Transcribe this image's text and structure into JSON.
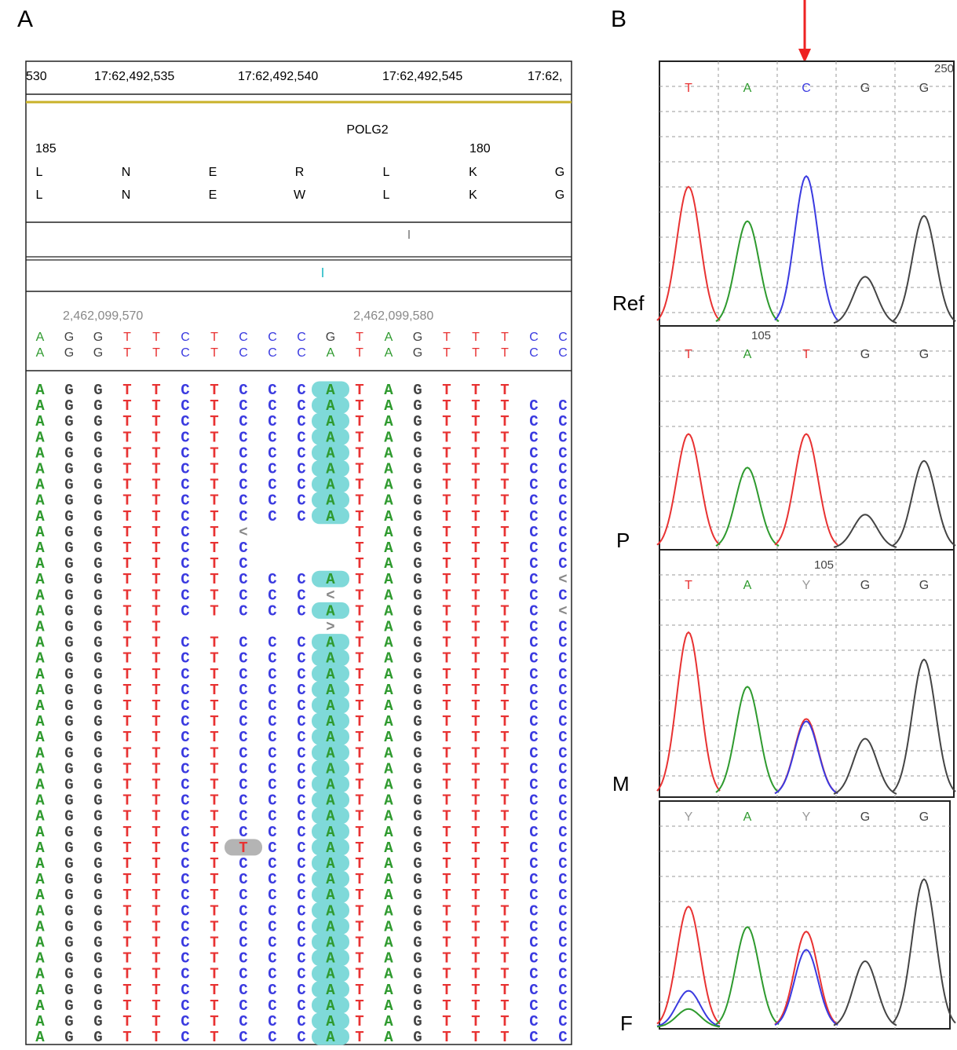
{
  "base_colors": {
    "A": "#2e9a2e",
    "G": "#444444",
    "T": "#e83232",
    "C": "#3a3ae0",
    "Y": "#9a9a9a",
    "<": "#888888",
    ">": "#888888"
  },
  "mismatch_fill": {
    "A": "#7fd9d9",
    "T": "#b4b4b4"
  },
  "panel_a": {
    "label": "A",
    "ruler": [
      "530",
      "17:62,492,535",
      "17:62,492,540",
      "17:62,492,545",
      "17:62,"
    ],
    "gene": "POLG2",
    "aa_numbers": [
      "185",
      "180"
    ],
    "aa_ref": [
      "L",
      "N",
      "E",
      "R",
      "L",
      "K",
      "G"
    ],
    "aa_alt": [
      "L",
      "N",
      "E",
      "W",
      "L",
      "K",
      "G"
    ],
    "coordinates": [
      "2,462,099,570",
      "2,462,099,580"
    ],
    "reference": [
      "A",
      "G",
      "G",
      "T",
      "T",
      "C",
      "T",
      "C",
      "C",
      "C",
      "G",
      "T",
      "A",
      "G",
      "T",
      "T",
      "T",
      "C",
      "C"
    ],
    "consensus": [
      "A",
      "G",
      "G",
      "T",
      "T",
      "C",
      "T",
      "C",
      "C",
      "C",
      "A",
      "T",
      "A",
      "G",
      "T",
      "T",
      "T",
      "C",
      "C"
    ],
    "reads": [
      [
        "A",
        "G",
        "G",
        "T",
        "T",
        "C",
        "T",
        "C",
        "C",
        "C",
        "A",
        "T",
        "A",
        "G",
        "T",
        "T",
        "T",
        null,
        null
      ],
      [
        "A",
        "G",
        "G",
        "T",
        "T",
        "C",
        "T",
        "C",
        "C",
        "C",
        "A",
        "T",
        "A",
        "G",
        "T",
        "T",
        "T",
        "C",
        "C"
      ],
      [
        "A",
        "G",
        "G",
        "T",
        "T",
        "C",
        "T",
        "C",
        "C",
        "C",
        "A",
        "T",
        "A",
        "G",
        "T",
        "T",
        "T",
        "C",
        "C"
      ],
      [
        "A",
        "G",
        "G",
        "T",
        "T",
        "C",
        "T",
        "C",
        "C",
        "C",
        "A",
        "T",
        "A",
        "G",
        "T",
        "T",
        "T",
        "C",
        "C"
      ],
      [
        "A",
        "G",
        "G",
        "T",
        "T",
        "C",
        "T",
        "C",
        "C",
        "C",
        "A",
        "T",
        "A",
        "G",
        "T",
        "T",
        "T",
        "C",
        "C"
      ],
      [
        "A",
        "G",
        "G",
        "T",
        "T",
        "C",
        "T",
        "C",
        "C",
        "C",
        "A",
        "T",
        "A",
        "G",
        "T",
        "T",
        "T",
        "C",
        "C"
      ],
      [
        "A",
        "G",
        "G",
        "T",
        "T",
        "C",
        "T",
        "C",
        "C",
        "C",
        "A",
        "T",
        "A",
        "G",
        "T",
        "T",
        "T",
        "C",
        "C"
      ],
      [
        "A",
        "G",
        "G",
        "T",
        "T",
        "C",
        "T",
        "C",
        "C",
        "C",
        "A",
        "T",
        "A",
        "G",
        "T",
        "T",
        "T",
        "C",
        "C"
      ],
      [
        "A",
        "G",
        "G",
        "T",
        "T",
        "C",
        "T",
        "C",
        "C",
        "C",
        "A",
        "T",
        "A",
        "G",
        "T",
        "T",
        "T",
        "C",
        "C"
      ],
      [
        "A",
        "G",
        "G",
        "T",
        "T",
        "C",
        "T",
        "<",
        null,
        null,
        null,
        "T",
        "A",
        "G",
        "T",
        "T",
        "T",
        "C",
        "C"
      ],
      [
        "A",
        "G",
        "G",
        "T",
        "T",
        "C",
        "T",
        "C",
        null,
        null,
        null,
        "T",
        "A",
        "G",
        "T",
        "T",
        "T",
        "C",
        "C"
      ],
      [
        "A",
        "G",
        "G",
        "T",
        "T",
        "C",
        "T",
        "C",
        null,
        null,
        null,
        "T",
        "A",
        "G",
        "T",
        "T",
        "T",
        "C",
        "C"
      ],
      [
        "A",
        "G",
        "G",
        "T",
        "T",
        "C",
        "T",
        "C",
        "C",
        "C",
        "A",
        "T",
        "A",
        "G",
        "T",
        "T",
        "T",
        "C",
        "<"
      ],
      [
        "A",
        "G",
        "G",
        "T",
        "T",
        "C",
        "T",
        "C",
        "C",
        "C",
        "<",
        "T",
        "A",
        "G",
        "T",
        "T",
        "T",
        "C",
        "C"
      ],
      [
        "A",
        "G",
        "G",
        "T",
        "T",
        "C",
        "T",
        "C",
        "C",
        "C",
        "A",
        "T",
        "A",
        "G",
        "T",
        "T",
        "T",
        "C",
        "<"
      ],
      [
        "A",
        "G",
        "G",
        "T",
        "T",
        null,
        null,
        null,
        null,
        null,
        ">",
        "T",
        "A",
        "G",
        "T",
        "T",
        "T",
        "C",
        "C"
      ],
      [
        "A",
        "G",
        "G",
        "T",
        "T",
        "C",
        "T",
        "C",
        "C",
        "C",
        "A",
        "T",
        "A",
        "G",
        "T",
        "T",
        "T",
        "C",
        "C"
      ],
      [
        "A",
        "G",
        "G",
        "T",
        "T",
        "C",
        "T",
        "C",
        "C",
        "C",
        "A",
        "T",
        "A",
        "G",
        "T",
        "T",
        "T",
        "C",
        "C"
      ],
      [
        "A",
        "G",
        "G",
        "T",
        "T",
        "C",
        "T",
        "C",
        "C",
        "C",
        "A",
        "T",
        "A",
        "G",
        "T",
        "T",
        "T",
        "C",
        "C"
      ],
      [
        "A",
        "G",
        "G",
        "T",
        "T",
        "C",
        "T",
        "C",
        "C",
        "C",
        "A",
        "T",
        "A",
        "G",
        "T",
        "T",
        "T",
        "C",
        "C"
      ],
      [
        "A",
        "G",
        "G",
        "T",
        "T",
        "C",
        "T",
        "C",
        "C",
        "C",
        "A",
        "T",
        "A",
        "G",
        "T",
        "T",
        "T",
        "C",
        "C"
      ],
      [
        "A",
        "G",
        "G",
        "T",
        "T",
        "C",
        "T",
        "C",
        "C",
        "C",
        "A",
        "T",
        "A",
        "G",
        "T",
        "T",
        "T",
        "C",
        "C"
      ],
      [
        "A",
        "G",
        "G",
        "T",
        "T",
        "C",
        "T",
        "C",
        "C",
        "C",
        "A",
        "T",
        "A",
        "G",
        "T",
        "T",
        "T",
        "C",
        "C"
      ],
      [
        "A",
        "G",
        "G",
        "T",
        "T",
        "C",
        "T",
        "C",
        "C",
        "C",
        "A",
        "T",
        "A",
        "G",
        "T",
        "T",
        "T",
        "C",
        "C"
      ],
      [
        "A",
        "G",
        "G",
        "T",
        "T",
        "C",
        "T",
        "C",
        "C",
        "C",
        "A",
        "T",
        "A",
        "G",
        "T",
        "T",
        "T",
        "C",
        "C"
      ],
      [
        "A",
        "G",
        "G",
        "T",
        "T",
        "C",
        "T",
        "C",
        "C",
        "C",
        "A",
        "T",
        "A",
        "G",
        "T",
        "T",
        "T",
        "C",
        "C"
      ],
      [
        "A",
        "G",
        "G",
        "T",
        "T",
        "C",
        "T",
        "C",
        "C",
        "C",
        "A",
        "T",
        "A",
        "G",
        "T",
        "T",
        "T",
        "C",
        "C"
      ],
      [
        "A",
        "G",
        "G",
        "T",
        "T",
        "C",
        "T",
        "C",
        "C",
        "C",
        "A",
        "T",
        "A",
        "G",
        "T",
        "T",
        "T",
        "C",
        "C"
      ],
      [
        "A",
        "G",
        "G",
        "T",
        "T",
        "C",
        "T",
        "C",
        "C",
        "C",
        "A",
        "T",
        "A",
        "G",
        "T",
        "T",
        "T",
        "C",
        "C"
      ],
      [
        "A",
        "G",
        "G",
        "T",
        "T",
        "C",
        "T",
        "T",
        "C",
        "C",
        "A",
        "T",
        "A",
        "G",
        "T",
        "T",
        "T",
        "C",
        "C"
      ],
      [
        "A",
        "G",
        "G",
        "T",
        "T",
        "C",
        "T",
        "C",
        "C",
        "C",
        "A",
        "T",
        "A",
        "G",
        "T",
        "T",
        "T",
        "C",
        "C"
      ],
      [
        "A",
        "G",
        "G",
        "T",
        "T",
        "C",
        "T",
        "C",
        "C",
        "C",
        "A",
        "T",
        "A",
        "G",
        "T",
        "T",
        "T",
        "C",
        "C"
      ],
      [
        "A",
        "G",
        "G",
        "T",
        "T",
        "C",
        "T",
        "C",
        "C",
        "C",
        "A",
        "T",
        "A",
        "G",
        "T",
        "T",
        "T",
        "C",
        "C"
      ],
      [
        "A",
        "G",
        "G",
        "T",
        "T",
        "C",
        "T",
        "C",
        "C",
        "C",
        "A",
        "T",
        "A",
        "G",
        "T",
        "T",
        "T",
        "C",
        "C"
      ],
      [
        "A",
        "G",
        "G",
        "T",
        "T",
        "C",
        "T",
        "C",
        "C",
        "C",
        "A",
        "T",
        "A",
        "G",
        "T",
        "T",
        "T",
        "C",
        "C"
      ],
      [
        "A",
        "G",
        "G",
        "T",
        "T",
        "C",
        "T",
        "C",
        "C",
        "C",
        "A",
        "T",
        "A",
        "G",
        "T",
        "T",
        "T",
        "C",
        "C"
      ],
      [
        "A",
        "G",
        "G",
        "T",
        "T",
        "C",
        "T",
        "C",
        "C",
        "C",
        "A",
        "T",
        "A",
        "G",
        "T",
        "T",
        "T",
        "C",
        "C"
      ],
      [
        "A",
        "G",
        "G",
        "T",
        "T",
        "C",
        "T",
        "C",
        "C",
        "C",
        "A",
        "T",
        "A",
        "G",
        "T",
        "T",
        "T",
        "C",
        "C"
      ],
      [
        "A",
        "G",
        "G",
        "T",
        "T",
        "C",
        "T",
        "C",
        "C",
        "C",
        "A",
        "T",
        "A",
        "G",
        "T",
        "T",
        "T",
        "C",
        "C"
      ],
      [
        "A",
        "G",
        "G",
        "T",
        "T",
        "C",
        "T",
        "C",
        "C",
        "C",
        "A",
        "T",
        "A",
        "G",
        "T",
        "T",
        "T",
        "C",
        "C"
      ],
      [
        "A",
        "G",
        "G",
        "T",
        "T",
        "C",
        "T",
        "C",
        "C",
        "C",
        "A",
        "T",
        "A",
        "G",
        "T",
        "T",
        "T",
        "C",
        "C"
      ],
      [
        "A",
        "G",
        "G",
        "T",
        "T",
        "C",
        "T",
        "C",
        "C",
        "C",
        "A",
        "T",
        "A",
        "G",
        "T",
        "T",
        "T",
        "C",
        "C"
      ]
    ]
  },
  "panel_b": {
    "label": "B",
    "chromatograms": [
      {
        "name": "Ref",
        "scale": "250",
        "calls": [
          "T",
          "A",
          "C",
          "G",
          "G"
        ],
        "peaks": [
          {
            "base": "T",
            "pos": 0,
            "height": 0.52
          },
          {
            "base": "A",
            "pos": 1,
            "height": 0.39
          },
          {
            "base": "C",
            "pos": 2,
            "height": 0.56
          },
          {
            "base": "G",
            "pos": 3,
            "height": 0.18
          },
          {
            "base": "G",
            "pos": 4,
            "height": 0.41
          }
        ]
      },
      {
        "name": "P",
        "scale": "105",
        "calls": [
          "T",
          "A",
          "T",
          "G",
          "G"
        ],
        "peaks": [
          {
            "base": "T",
            "pos": 0,
            "height": 0.51
          },
          {
            "base": "A",
            "pos": 1,
            "height": 0.36
          },
          {
            "base": "T",
            "pos": 2,
            "height": 0.51
          },
          {
            "base": "G",
            "pos": 3,
            "height": 0.15
          },
          {
            "base": "G",
            "pos": 4,
            "height": 0.39
          }
        ]
      },
      {
        "name": "M",
        "scale": "105",
        "calls": [
          "T",
          "A",
          "Y",
          "G",
          "G"
        ],
        "peaks": [
          {
            "base": "T",
            "pos": 0,
            "height": 0.66
          },
          {
            "base": "A",
            "pos": 1,
            "height": 0.44
          },
          {
            "base": "T",
            "pos": 2,
            "height": 0.31
          },
          {
            "base": "C",
            "pos": 2,
            "height": 0.3
          },
          {
            "base": "G",
            "pos": 3,
            "height": 0.23
          },
          {
            "base": "G",
            "pos": 4,
            "height": 0.55
          }
        ]
      },
      {
        "name": "F",
        "calls": [
          "Y",
          "A",
          "Y",
          "G",
          "G"
        ],
        "peaks": [
          {
            "base": "T",
            "pos": 0,
            "height": 0.53
          },
          {
            "base": "C",
            "pos": 0,
            "height": 0.16
          },
          {
            "base": "A",
            "pos": 0,
            "height": 0.08
          },
          {
            "base": "A",
            "pos": 1,
            "height": 0.44
          },
          {
            "base": "T",
            "pos": 2,
            "height": 0.42
          },
          {
            "base": "C",
            "pos": 2,
            "height": 0.34
          },
          {
            "base": "G",
            "pos": 3,
            "height": 0.29
          },
          {
            "base": "G",
            "pos": 4,
            "height": 0.65
          }
        ]
      }
    ]
  }
}
